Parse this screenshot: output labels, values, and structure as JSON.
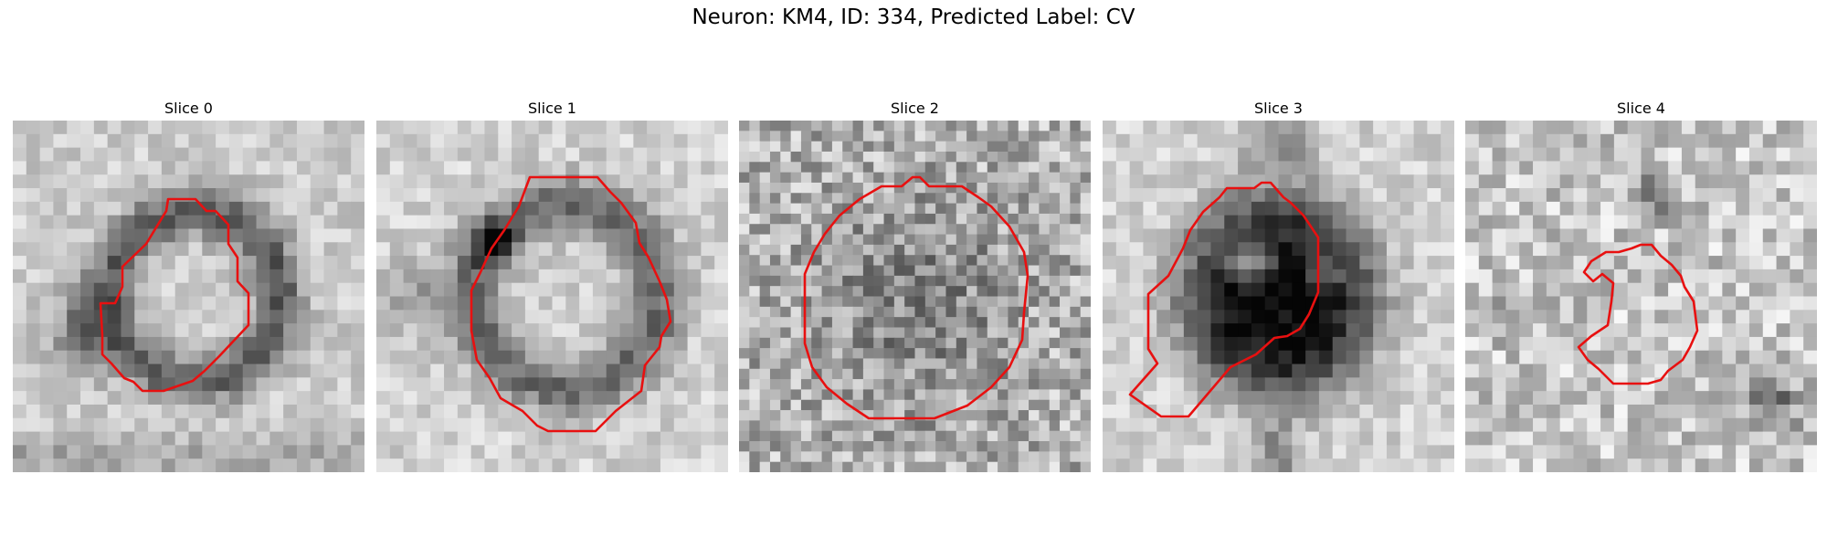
{
  "figure": {
    "title": "Neuron: KM4, ID: 334, Predicted Label: CV"
  },
  "panels": [
    {
      "title": "Slice 0",
      "outline_color": "#e81010",
      "scene": "ring"
    },
    {
      "title": "Slice 1",
      "outline_color": "#e81010",
      "scene": "ring-dark-left"
    },
    {
      "title": "Slice 2",
      "outline_color": "#e81010",
      "scene": "noisy"
    },
    {
      "title": "Slice 3",
      "outline_color": "#e81010",
      "scene": "dark-blob"
    },
    {
      "title": "Slice 4",
      "outline_color": "#e81010",
      "scene": "sparse"
    }
  ]
}
